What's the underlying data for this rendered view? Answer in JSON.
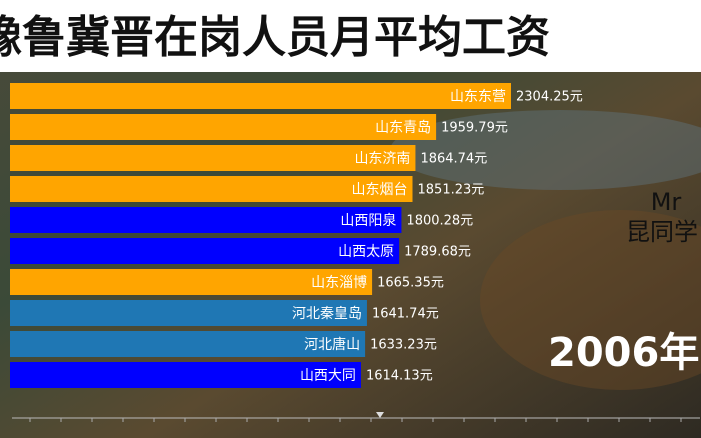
{
  "chart_data": {
    "type": "bar",
    "orientation": "horizontal",
    "title": "豫鲁冀晋在岗人员月平均工资",
    "year_label": "2006年",
    "watermark": [
      "Mr",
      "昆同学"
    ],
    "categories": [
      "山东东营",
      "山东青岛",
      "山东济南",
      "山东烟台",
      "山西阳泉",
      "山西太原",
      "山东淄博",
      "河北秦皇岛",
      "河北唐山",
      "山西大同"
    ],
    "values": [
      2304.25,
      1959.79,
      1864.74,
      1851.23,
      1800.28,
      1789.68,
      1665.35,
      1641.74,
      1633.23,
      1614.13
    ],
    "value_labels": [
      "2304.25元",
      "1959.79元",
      "1864.74元",
      "1851.23元",
      "1800.28元",
      "1789.68元",
      "1665.35元",
      "1641.74元",
      "1633.23元",
      "1614.13元"
    ],
    "colors": [
      "#ffa500",
      "#ffa500",
      "#ffa500",
      "#ffa500",
      "#0000ff",
      "#0000ff",
      "#ffa500",
      "#1f77b4",
      "#1f77b4",
      "#0000ff"
    ]
  }
}
